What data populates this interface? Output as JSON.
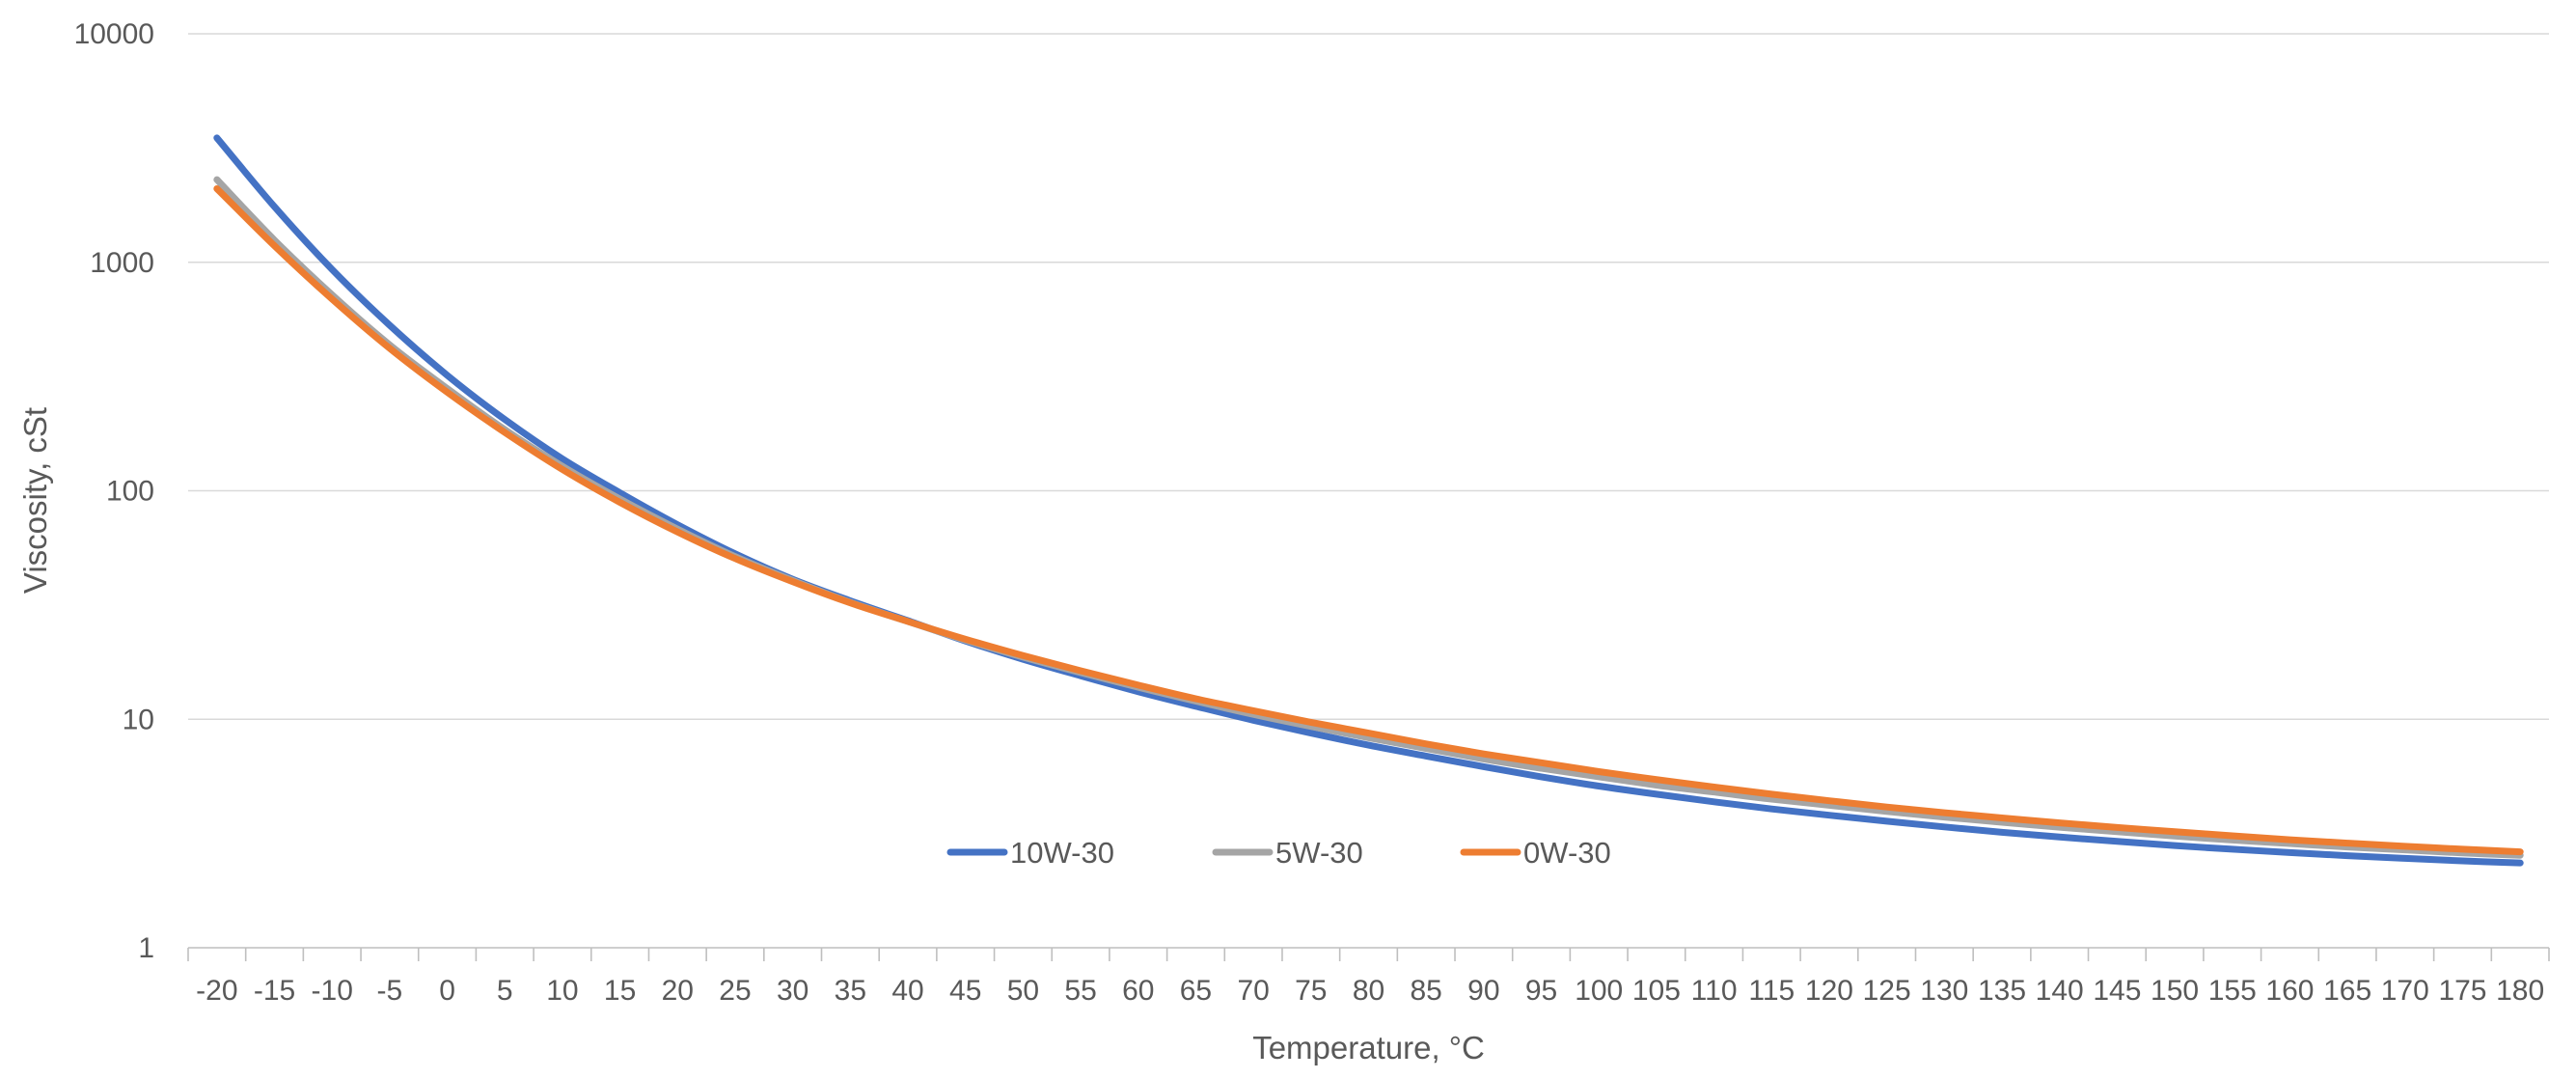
{
  "chart_data": {
    "type": "line",
    "title": "",
    "xlabel": "Temperature, °C",
    "ylabel": "Viscosity, cSt",
    "y_scale": "log",
    "ylim": [
      1,
      10000
    ],
    "y_ticks": [
      "1",
      "10",
      "100",
      "1000",
      "10000"
    ],
    "categories": [
      "-20",
      "-15",
      "-10",
      "-5",
      "0",
      "5",
      "10",
      "15",
      "20",
      "25",
      "30",
      "35",
      "40",
      "45",
      "50",
      "55",
      "60",
      "65",
      "70",
      "75",
      "80",
      "85",
      "90",
      "95",
      "100",
      "105",
      "110",
      "115",
      "120",
      "125",
      "130",
      "135",
      "140",
      "145",
      "150",
      "155",
      "160",
      "165",
      "170",
      "175",
      "180"
    ],
    "grid": "horizontal",
    "legend_position": "inside-bottom-center",
    "series": [
      {
        "name": "10W-30",
        "color": "#4472c4",
        "values": [
          3500,
          1750,
          930,
          530,
          320,
          205,
          138,
          98,
          71,
          53,
          41,
          33,
          27,
          22,
          18.3,
          15.5,
          13.2,
          11.4,
          9.9,
          8.7,
          7.7,
          6.9,
          6.2,
          5.6,
          5.1,
          4.7,
          4.35,
          4.05,
          3.8,
          3.58,
          3.38,
          3.2,
          3.05,
          2.92,
          2.8,
          2.7,
          2.61,
          2.53,
          2.46,
          2.4,
          2.35
        ]
      },
      {
        "name": "5W-30",
        "color": "#a5a5a5",
        "values": [
          2300,
          1250,
          720,
          435,
          280,
          185,
          128,
          92,
          68,
          51.5,
          40.5,
          32.5,
          26.8,
          22.2,
          18.7,
          16,
          13.8,
          12,
          10.5,
          9.3,
          8.3,
          7.45,
          6.7,
          6.1,
          5.6,
          5.15,
          4.8,
          4.47,
          4.2,
          3.95,
          3.73,
          3.54,
          3.37,
          3.22,
          3.08,
          2.96,
          2.86,
          2.76,
          2.68,
          2.6,
          2.54
        ]
      },
      {
        "name": "0W-30",
        "color": "#ed7d31",
        "values": [
          2100,
          1180,
          690,
          420,
          270,
          180,
          124,
          89,
          66,
          50.5,
          40,
          32.3,
          26.8,
          22.4,
          19,
          16.3,
          14.1,
          12.3,
          10.9,
          9.7,
          8.7,
          7.8,
          7.05,
          6.45,
          5.9,
          5.45,
          5.05,
          4.7,
          4.4,
          4.13,
          3.9,
          3.7,
          3.52,
          3.36,
          3.22,
          3.09,
          2.97,
          2.87,
          2.78,
          2.7,
          2.63
        ]
      }
    ]
  }
}
